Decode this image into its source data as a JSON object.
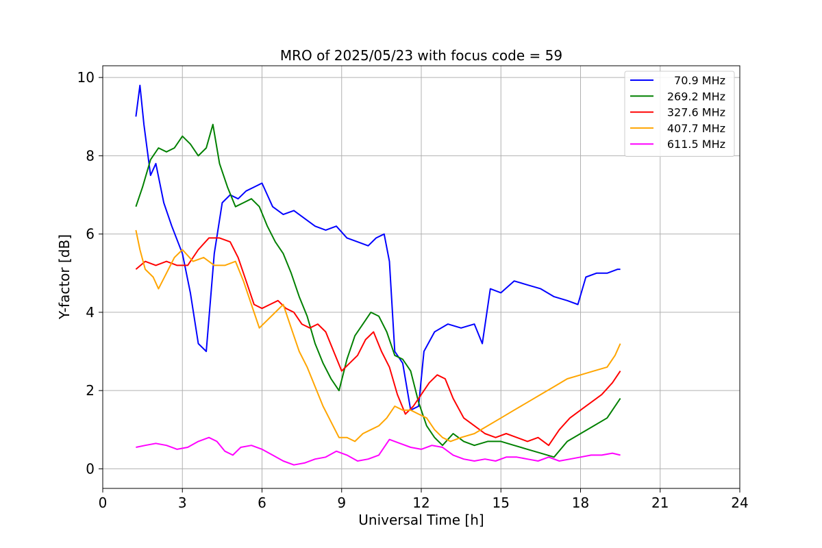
{
  "chart_data": {
    "type": "line",
    "title": "MRO of 2025/05/23 with focus code = 59",
    "xlabel": "Universal Time [h]",
    "ylabel": "Y-factor [dB]",
    "xlim": [
      0,
      24
    ],
    "ylim": [
      -0.5,
      10.3
    ],
    "xticks": [
      0,
      3,
      6,
      9,
      12,
      15,
      18,
      21,
      24
    ],
    "yticks": [
      0,
      2,
      4,
      6,
      8,
      10
    ],
    "grid": true,
    "legend_position": "top-right",
    "series": [
      {
        "name": "70.9 MHz",
        "color": "#0000ff",
        "x": [
          1.25,
          1.4,
          1.55,
          1.8,
          2.0,
          2.3,
          2.6,
          3.0,
          3.3,
          3.6,
          3.9,
          4.2,
          4.5,
          4.8,
          5.1,
          5.4,
          5.7,
          6.0,
          6.4,
          6.8,
          7.2,
          7.6,
          8.0,
          8.4,
          8.8,
          9.2,
          9.6,
          10.0,
          10.3,
          10.6,
          10.8,
          11.0,
          11.3,
          11.6,
          11.9,
          12.1,
          12.5,
          13.0,
          13.5,
          14.0,
          14.3,
          14.6,
          15.0,
          15.5,
          16.0,
          16.5,
          17.0,
          17.5,
          17.9,
          18.2,
          18.6,
          19.0,
          19.4,
          19.5
        ],
        "y": [
          9.0,
          9.8,
          8.8,
          7.5,
          7.8,
          6.8,
          6.2,
          5.5,
          4.5,
          3.2,
          3.0,
          5.5,
          6.8,
          7.0,
          6.9,
          7.1,
          7.2,
          7.3,
          6.7,
          6.5,
          6.6,
          6.4,
          6.2,
          6.1,
          6.2,
          5.9,
          5.8,
          5.7,
          5.9,
          6.0,
          5.3,
          3.0,
          2.7,
          1.5,
          1.6,
          3.0,
          3.5,
          3.7,
          3.6,
          3.7,
          3.2,
          4.6,
          4.5,
          4.8,
          4.7,
          4.6,
          4.4,
          4.3,
          4.2,
          4.9,
          5.0,
          5.0,
          5.1,
          5.1
        ]
      },
      {
        "name": "269.2 MHz",
        "color": "#008000",
        "x": [
          1.25,
          1.5,
          1.8,
          2.1,
          2.4,
          2.7,
          3.0,
          3.3,
          3.6,
          3.9,
          4.15,
          4.4,
          4.7,
          5.0,
          5.3,
          5.6,
          5.9,
          6.2,
          6.5,
          6.8,
          7.1,
          7.4,
          7.7,
          8.0,
          8.3,
          8.6,
          8.9,
          9.2,
          9.5,
          9.8,
          10.1,
          10.4,
          10.7,
          11.0,
          11.3,
          11.6,
          11.9,
          12.2,
          12.5,
          12.8,
          13.2,
          13.6,
          14.0,
          14.5,
          15.0,
          15.5,
          16.0,
          16.5,
          17.0,
          17.5,
          18.0,
          18.5,
          19.0,
          19.5
        ],
        "y": [
          6.7,
          7.2,
          7.9,
          8.2,
          8.1,
          8.2,
          8.5,
          8.3,
          8.0,
          8.2,
          8.8,
          7.8,
          7.2,
          6.7,
          6.8,
          6.9,
          6.7,
          6.2,
          5.8,
          5.5,
          5.0,
          4.4,
          3.9,
          3.2,
          2.7,
          2.3,
          2.0,
          2.8,
          3.4,
          3.7,
          4.0,
          3.9,
          3.5,
          2.9,
          2.8,
          2.5,
          1.7,
          1.1,
          0.8,
          0.6,
          0.9,
          0.7,
          0.6,
          0.7,
          0.7,
          0.6,
          0.5,
          0.4,
          0.3,
          0.7,
          0.9,
          1.1,
          1.3,
          1.8
        ]
      },
      {
        "name": "327.6 MHz",
        "color": "#ff0000",
        "x": [
          1.25,
          1.6,
          2.0,
          2.4,
          2.8,
          3.2,
          3.6,
          4.0,
          4.4,
          4.8,
          5.1,
          5.4,
          5.7,
          6.0,
          6.3,
          6.6,
          6.9,
          7.2,
          7.5,
          7.8,
          8.1,
          8.4,
          8.7,
          9.0,
          9.3,
          9.6,
          9.9,
          10.2,
          10.5,
          10.8,
          11.1,
          11.4,
          11.7,
          12.0,
          12.3,
          12.6,
          12.9,
          13.2,
          13.6,
          14.0,
          14.4,
          14.8,
          15.2,
          15.6,
          16.0,
          16.4,
          16.8,
          17.2,
          17.6,
          18.0,
          18.4,
          18.8,
          19.2,
          19.5
        ],
        "y": [
          5.1,
          5.3,
          5.2,
          5.3,
          5.2,
          5.2,
          5.6,
          5.9,
          5.9,
          5.8,
          5.4,
          4.8,
          4.2,
          4.1,
          4.2,
          4.3,
          4.1,
          4.0,
          3.7,
          3.6,
          3.7,
          3.5,
          3.0,
          2.5,
          2.7,
          2.9,
          3.3,
          3.5,
          3.0,
          2.6,
          1.9,
          1.4,
          1.6,
          1.9,
          2.2,
          2.4,
          2.3,
          1.8,
          1.3,
          1.1,
          0.9,
          0.8,
          0.9,
          0.8,
          0.7,
          0.8,
          0.6,
          1.0,
          1.3,
          1.5,
          1.7,
          1.9,
          2.2,
          2.5
        ]
      },
      {
        "name": "407.7 MHz",
        "color": "#ffa500",
        "x": [
          1.25,
          1.4,
          1.6,
          1.9,
          2.1,
          2.4,
          2.7,
          3.0,
          3.4,
          3.8,
          4.2,
          4.6,
          5.0,
          5.3,
          5.6,
          5.9,
          6.2,
          6.5,
          6.8,
          7.1,
          7.4,
          7.7,
          8.0,
          8.3,
          8.6,
          8.9,
          9.2,
          9.5,
          9.8,
          10.1,
          10.4,
          10.7,
          11.0,
          11.3,
          11.6,
          11.9,
          12.2,
          12.5,
          12.8,
          13.1,
          13.5,
          14.0,
          14.5,
          15.0,
          15.5,
          16.0,
          16.5,
          17.0,
          17.5,
          18.0,
          18.5,
          19.0,
          19.3,
          19.5
        ],
        "y": [
          6.1,
          5.6,
          5.1,
          4.9,
          4.6,
          5.0,
          5.4,
          5.6,
          5.3,
          5.4,
          5.2,
          5.2,
          5.3,
          4.8,
          4.2,
          3.6,
          3.8,
          4.0,
          4.2,
          3.6,
          3.0,
          2.6,
          2.1,
          1.6,
          1.2,
          0.8,
          0.8,
          0.7,
          0.9,
          1.0,
          1.1,
          1.3,
          1.6,
          1.5,
          1.5,
          1.4,
          1.3,
          1.0,
          0.8,
          0.7,
          0.8,
          0.9,
          1.1,
          1.3,
          1.5,
          1.7,
          1.9,
          2.1,
          2.3,
          2.4,
          2.5,
          2.6,
          2.9,
          3.2
        ]
      },
      {
        "name": "611.5 MHz",
        "color": "#ff00ff",
        "x": [
          1.25,
          1.6,
          2.0,
          2.4,
          2.8,
          3.2,
          3.6,
          4.0,
          4.3,
          4.6,
          4.9,
          5.2,
          5.6,
          6.0,
          6.4,
          6.8,
          7.2,
          7.6,
          8.0,
          8.4,
          8.8,
          9.2,
          9.6,
          10.0,
          10.4,
          10.8,
          11.2,
          11.6,
          12.0,
          12.4,
          12.8,
          13.2,
          13.6,
          14.0,
          14.4,
          14.8,
          15.2,
          15.6,
          16.0,
          16.4,
          16.8,
          17.2,
          17.6,
          18.0,
          18.4,
          18.8,
          19.2,
          19.5
        ],
        "y": [
          0.55,
          0.6,
          0.65,
          0.6,
          0.5,
          0.55,
          0.7,
          0.8,
          0.7,
          0.45,
          0.35,
          0.55,
          0.6,
          0.5,
          0.35,
          0.2,
          0.1,
          0.15,
          0.25,
          0.3,
          0.45,
          0.35,
          0.2,
          0.25,
          0.35,
          0.75,
          0.65,
          0.55,
          0.5,
          0.6,
          0.55,
          0.35,
          0.25,
          0.2,
          0.25,
          0.2,
          0.3,
          0.3,
          0.25,
          0.2,
          0.3,
          0.2,
          0.25,
          0.3,
          0.35,
          0.35,
          0.4,
          0.35
        ]
      }
    ]
  }
}
